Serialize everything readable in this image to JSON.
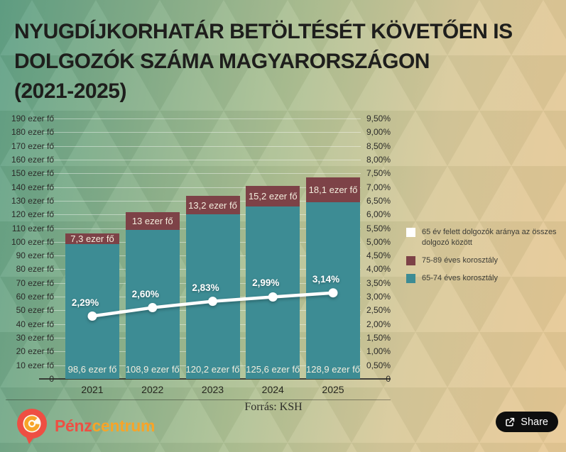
{
  "title": "NYUGDÍJKORHATÁR BETÖLTÉSÉT KÖVETŐEN IS\nDOLGOZÓK SZÁMA MAGYARORSZÁGON\n(2021-2025)",
  "source": "Forrás: KSH",
  "legend": {
    "items": [
      {
        "label": "65 év felett dolgozók aránya az összes dolgozó között",
        "color": "#ffffff"
      },
      {
        "label": "75-89 éves korosztály",
        "color": "#7d4247"
      },
      {
        "label": "65-74 éves korosztály",
        "color": "#3d8c94"
      }
    ]
  },
  "footer": {
    "brand": {
      "part1": "Pénz",
      "part2": "centrum",
      "red": "#ee4f43",
      "orange": "#f7a428"
    },
    "share_label": "Share",
    "share_bg": "#0e0e0e"
  },
  "chart_data": {
    "type": "combo-stacked-bar-line",
    "categories": [
      "2021",
      "2022",
      "2023",
      "2024",
      "2025"
    ],
    "series": [
      {
        "name": "65-74 éves korosztály",
        "type": "bar",
        "stack": true,
        "axis": "left",
        "color": "#3d8c94",
        "values": [
          98.6,
          108.9,
          120.2,
          125.6,
          128.9
        ],
        "labels": [
          "98,6 ezer fő",
          "108,9 ezer fő",
          "120,2 ezer fő",
          "125,6 ezer fő",
          "128,9 ezer fő"
        ]
      },
      {
        "name": "75-89 éves korosztály",
        "type": "bar",
        "stack": true,
        "axis": "left",
        "color": "#7d4247",
        "values": [
          7.3,
          13,
          13.2,
          15.2,
          18.1
        ],
        "labels": [
          "7,3 ezer fő",
          "13 ezer fő",
          "13,2 ezer fő",
          "15,2 ezer fő",
          "18,1 ezer fő"
        ]
      },
      {
        "name": "65 év felett dolgozók aránya az összes dolgozó között",
        "type": "line",
        "axis": "right",
        "color": "#ffffff",
        "values": [
          2.29,
          2.6,
          2.83,
          2.99,
          3.14
        ],
        "labels": [
          "2,29%",
          "2,60%",
          "2,83%",
          "2,99%",
          "3,14%"
        ]
      }
    ],
    "left_axis": {
      "title": "ezer fő",
      "min": 0,
      "max": 190,
      "step": 10,
      "labels": [
        "190 ezer fő",
        "180 ezer fő",
        "170 ezer fő",
        "160 ezer fő",
        "150 ezer fő",
        "140 ezer fő",
        "130 ezer fő",
        "120 ezer fő",
        "110 ezer fő",
        "100 ezer fő",
        "90 ezer fő",
        "80 ezer fő",
        "70 ezer fő",
        "60 ezer fő",
        "50 ezer fő",
        "40 ezer fő",
        "30 ezer fő",
        "20 ezer fő",
        "10 ezer fő",
        "0"
      ]
    },
    "right_axis": {
      "title": "%",
      "min": 0,
      "max": 9.5,
      "step": 0.5,
      "labels": [
        "9,50%",
        "9,00%",
        "8,50%",
        "8,00%",
        "7,50%",
        "7,00%",
        "6,50%",
        "6,00%",
        "5,50%",
        "5,00%",
        "4,50%",
        "4,00%",
        "3,50%",
        "3,00%",
        "2,50%",
        "2,00%",
        "1,50%",
        "1,00%",
        "0,50%",
        "0"
      ]
    },
    "grid": true,
    "legend_position": "right"
  }
}
